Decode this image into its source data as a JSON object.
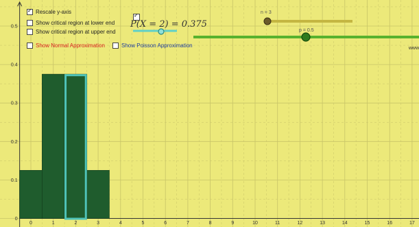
{
  "controls": {
    "rescale_label": "Rescale y-axis",
    "rescale_checked": true,
    "lower_label": "Show critical region at lower end",
    "upper_label": "Show critical region at upper end",
    "normal_label": "Show Normal Approximation",
    "poisson_label": "Show Poisson Approximation"
  },
  "probability": {
    "text": "P(X = 2) = 0.375",
    "checked": true
  },
  "sliders": {
    "n": {
      "label": "n = 3",
      "value": 3
    },
    "p": {
      "label": "p = 0.5",
      "value": 0.5
    }
  },
  "url_fragment": "www",
  "colors": {
    "background": "#ece97a",
    "bar": "#1f5c2d",
    "highlight_outline": "#4fc3b8",
    "slider_n": "#c4b642",
    "slider_p": "#58b22e",
    "grid": "#c8c468"
  },
  "chart_data": {
    "type": "bar",
    "x_ticks": [
      "0",
      "1",
      "2",
      "3",
      "4",
      "5",
      "6",
      "7",
      "8",
      "9",
      "10",
      "11",
      "12",
      "13",
      "14",
      "15",
      "16",
      "17"
    ],
    "y_ticks": [
      "0",
      "0.1",
      "0.2",
      "0.3",
      "0.4",
      "0.5"
    ],
    "categories": [
      0,
      1,
      2,
      3
    ],
    "values": [
      0.125,
      0.375,
      0.375,
      0.125
    ],
    "highlighted_x": 2,
    "xlim": [
      -0.4,
      17.5
    ],
    "ylim": [
      0,
      0.5
    ],
    "grid": true
  }
}
